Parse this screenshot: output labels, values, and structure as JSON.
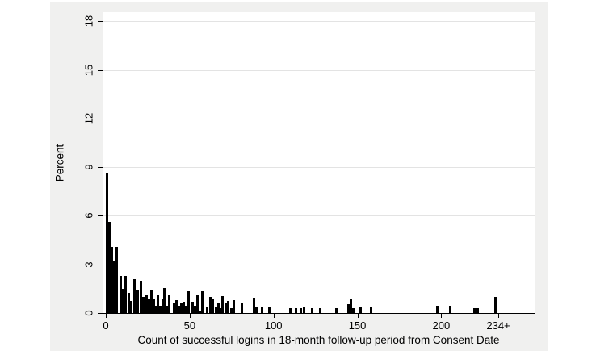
{
  "chart_data": {
    "type": "bar",
    "subtype": "histogram",
    "title": "",
    "xlabel": "Count of successful logins in 18-month follow-up period from Consent Date",
    "ylabel": "Percent",
    "ylim": [
      0,
      18.6
    ],
    "xlim": [
      -2,
      255
    ],
    "grid": "horizontal",
    "legend": "none",
    "y_ticks": [
      0,
      3,
      6,
      9,
      12,
      15,
      18
    ],
    "x_ticks": [
      {
        "value": 0,
        "label": "0"
      },
      {
        "value": 50,
        "label": "50"
      },
      {
        "value": 100,
        "label": "100"
      },
      {
        "value": 150,
        "label": "150"
      },
      {
        "value": 200,
        "label": "200"
      },
      {
        "value": 234,
        "label": "234+"
      }
    ],
    "bar_fill": "#000000",
    "bar_width_units": 1.5,
    "bars": [
      {
        "x": 0.0,
        "pct": 8.6
      },
      {
        "x": 1.4,
        "pct": 5.6
      },
      {
        "x": 2.9,
        "pct": 4.1
      },
      {
        "x": 4.3,
        "pct": 3.2
      },
      {
        "x": 6.0,
        "pct": 4.1
      },
      {
        "x": 8.2,
        "pct": 2.3
      },
      {
        "x": 9.6,
        "pct": 1.5
      },
      {
        "x": 11.1,
        "pct": 2.3
      },
      {
        "x": 13.0,
        "pct": 1.25
      },
      {
        "x": 14.4,
        "pct": 0.75
      },
      {
        "x": 16.4,
        "pct": 2.1
      },
      {
        "x": 18.3,
        "pct": 1.45
      },
      {
        "x": 20.2,
        "pct": 2.0
      },
      {
        "x": 21.6,
        "pct": 1.0
      },
      {
        "x": 23.6,
        "pct": 1.1
      },
      {
        "x": 24.8,
        "pct": 0.85
      },
      {
        "x": 26.3,
        "pct": 1.4
      },
      {
        "x": 27.7,
        "pct": 0.85
      },
      {
        "x": 29.1,
        "pct": 0.45
      },
      {
        "x": 30.3,
        "pct": 1.1
      },
      {
        "x": 31.8,
        "pct": 0.45
      },
      {
        "x": 33.2,
        "pct": 0.85
      },
      {
        "x": 34.4,
        "pct": 1.55
      },
      {
        "x": 35.9,
        "pct": 0.45
      },
      {
        "x": 37.3,
        "pct": 1.1
      },
      {
        "x": 40.0,
        "pct": 0.6
      },
      {
        "x": 41.4,
        "pct": 0.8
      },
      {
        "x": 42.8,
        "pct": 0.45
      },
      {
        "x": 44.3,
        "pct": 0.6
      },
      {
        "x": 45.7,
        "pct": 0.7
      },
      {
        "x": 47.2,
        "pct": 0.45
      },
      {
        "x": 48.4,
        "pct": 1.35
      },
      {
        "x": 50.8,
        "pct": 0.7
      },
      {
        "x": 52.5,
        "pct": 0.45
      },
      {
        "x": 53.9,
        "pct": 1.1
      },
      {
        "x": 55.4,
        "pct": 0.15
      },
      {
        "x": 56.8,
        "pct": 1.35
      },
      {
        "x": 59.7,
        "pct": 0.4
      },
      {
        "x": 61.6,
        "pct": 1.0
      },
      {
        "x": 63.1,
        "pct": 0.85
      },
      {
        "x": 65.0,
        "pct": 0.4
      },
      {
        "x": 66.4,
        "pct": 0.6
      },
      {
        "x": 67.6,
        "pct": 0.3
      },
      {
        "x": 68.8,
        "pct": 1.05
      },
      {
        "x": 70.8,
        "pct": 0.6
      },
      {
        "x": 72.2,
        "pct": 0.75
      },
      {
        "x": 74.1,
        "pct": 0.3
      },
      {
        "x": 75.6,
        "pct": 0.8
      },
      {
        "x": 80.4,
        "pct": 0.65
      },
      {
        "x": 87.6,
        "pct": 0.9
      },
      {
        "x": 89.3,
        "pct": 0.35
      },
      {
        "x": 92.4,
        "pct": 0.4
      },
      {
        "x": 96.8,
        "pct": 0.35
      },
      {
        "x": 109.3,
        "pct": 0.3
      },
      {
        "x": 112.7,
        "pct": 0.3
      },
      {
        "x": 115.6,
        "pct": 0.3
      },
      {
        "x": 117.5,
        "pct": 0.35
      },
      {
        "x": 122.3,
        "pct": 0.3
      },
      {
        "x": 127.1,
        "pct": 0.3
      },
      {
        "x": 136.7,
        "pct": 0.3
      },
      {
        "x": 143.9,
        "pct": 0.55
      },
      {
        "x": 145.4,
        "pct": 0.85
      },
      {
        "x": 146.9,
        "pct": 0.3
      },
      {
        "x": 151.0,
        "pct": 0.35
      },
      {
        "x": 157.5,
        "pct": 0.4
      },
      {
        "x": 197.0,
        "pct": 0.45
      },
      {
        "x": 204.6,
        "pct": 0.45
      },
      {
        "x": 219.0,
        "pct": 0.3
      },
      {
        "x": 221.0,
        "pct": 0.3
      },
      {
        "x": 231.5,
        "pct": 1.0
      }
    ],
    "colors": {
      "panel_background": "#f0f0ef",
      "plot_background": "#ffffff",
      "gridline": "#e3e3e3",
      "axis": "#000000",
      "bar": "#000000",
      "text": "#000000"
    }
  }
}
